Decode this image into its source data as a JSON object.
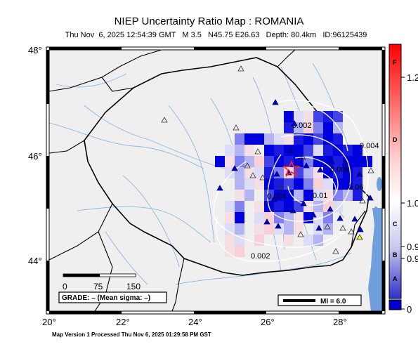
{
  "header": {
    "title": "NIEP Uncertainty Ratio Map : ROMANIA",
    "subtitle": "Thu Nov  6, 2025 12:54:39 GMT   M 3.5   N45.75 E26.63   Depth: 80.4km   ID:96125439"
  },
  "axes": {
    "lon_labels": [
      "20°",
      "22°",
      "24°",
      "26°",
      "28°"
    ],
    "lat_labels": [
      "48°",
      "46°",
      "44°"
    ]
  },
  "contour_labels": [
    "0.002",
    "0.004",
    "0.008",
    "0.004",
    "0.01",
    "0.06",
    "0.002"
  ],
  "scale_bar": {
    "labels": [
      "0",
      "75",
      "150"
    ]
  },
  "grade_box": "GRADE: – (Mean sigma: –)",
  "mi_legend": "MI = 6.0",
  "colorbar": {
    "letters": [
      "F",
      "D",
      "C",
      "B",
      "A"
    ],
    "ticks": [
      "1.2",
      "1.0",
      "0.9",
      "0.9",
      "0"
    ],
    "colors": {
      "top": "#ff0000",
      "mid": "#ffffff",
      "low": "#3333cc",
      "bottom": "#0000cc"
    }
  },
  "colors": {
    "land": "#efefef",
    "sea": "#6fa0dc",
    "rivers": "#8fb6dd",
    "border": "#000000",
    "epicenter": "#ff2222"
  },
  "footer": "Map Version 1 Processed Thu Nov  6, 2025 01:29:58 PM GST"
}
